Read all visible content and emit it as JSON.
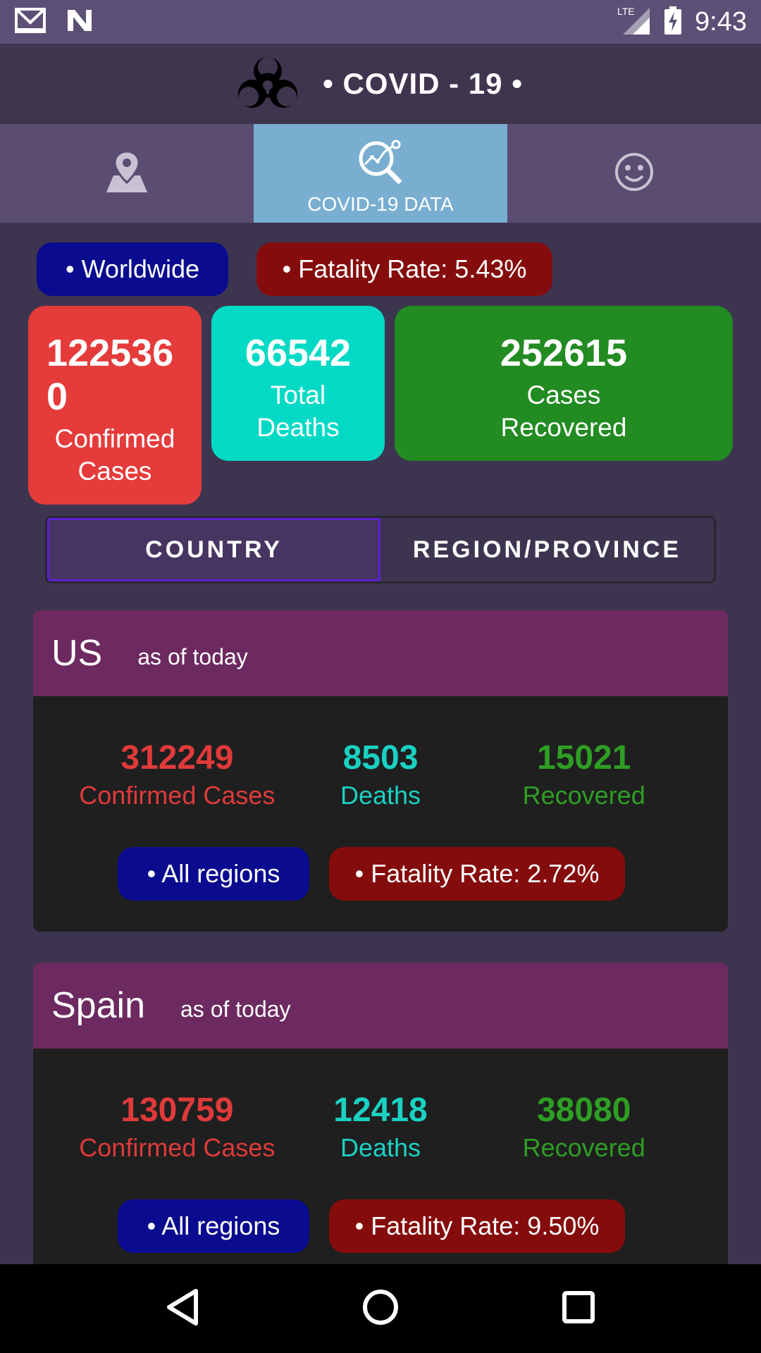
{
  "status_bar": {
    "time": "9:43",
    "network": "LTE"
  },
  "app_bar": {
    "title": "• COVID - 19 •"
  },
  "tabs": [
    {
      "icon": "map-pin-icon",
      "label": ""
    },
    {
      "icon": "data-search-icon",
      "label": "COVID-19 DATA"
    },
    {
      "icon": "smiley-icon",
      "label": ""
    }
  ],
  "worldwide": {
    "scope_label": "• Worldwide",
    "fatality_label": "• Fatality Rate: 5.43%",
    "confirmed": {
      "value_line1": "122536",
      "value_line2": "0",
      "label_line1": "Confirmed",
      "label_line2": "Cases"
    },
    "deaths": {
      "value": "66542",
      "label_line1": "Total",
      "label_line2": "Deaths"
    },
    "recovered": {
      "value": "252615",
      "label_line1": "Cases",
      "label_line2": "Recovered"
    }
  },
  "toggle": {
    "country_label": "COUNTRY",
    "region_label": "REGION/PROVINCE",
    "selected": "COUNTRY"
  },
  "countries": [
    {
      "name": "US",
      "as_of": "as of today",
      "confirmed": "312249",
      "confirmed_label": "Confirmed Cases",
      "deaths": "8503",
      "deaths_label": "Deaths",
      "recovered": "15021",
      "recovered_label": "Recovered",
      "regions_label": "• All regions",
      "fatality_label": "• Fatality Rate: 2.72%"
    },
    {
      "name": "Spain",
      "as_of": "as of today",
      "confirmed": "130759",
      "confirmed_label": "Confirmed Cases",
      "deaths": "12418",
      "deaths_label": "Deaths",
      "recovered": "38080",
      "recovered_label": "Recovered",
      "regions_label": "• All regions",
      "fatality_label": "• Fatality Rate: 9.50%"
    }
  ],
  "colors": {
    "confirmed": "#e53b3b",
    "deaths": "#03dac5",
    "recovered": "#228b22",
    "pill_blue": "#0a0b8e",
    "pill_red": "#850c0c",
    "active_tab": "#79aed0"
  }
}
